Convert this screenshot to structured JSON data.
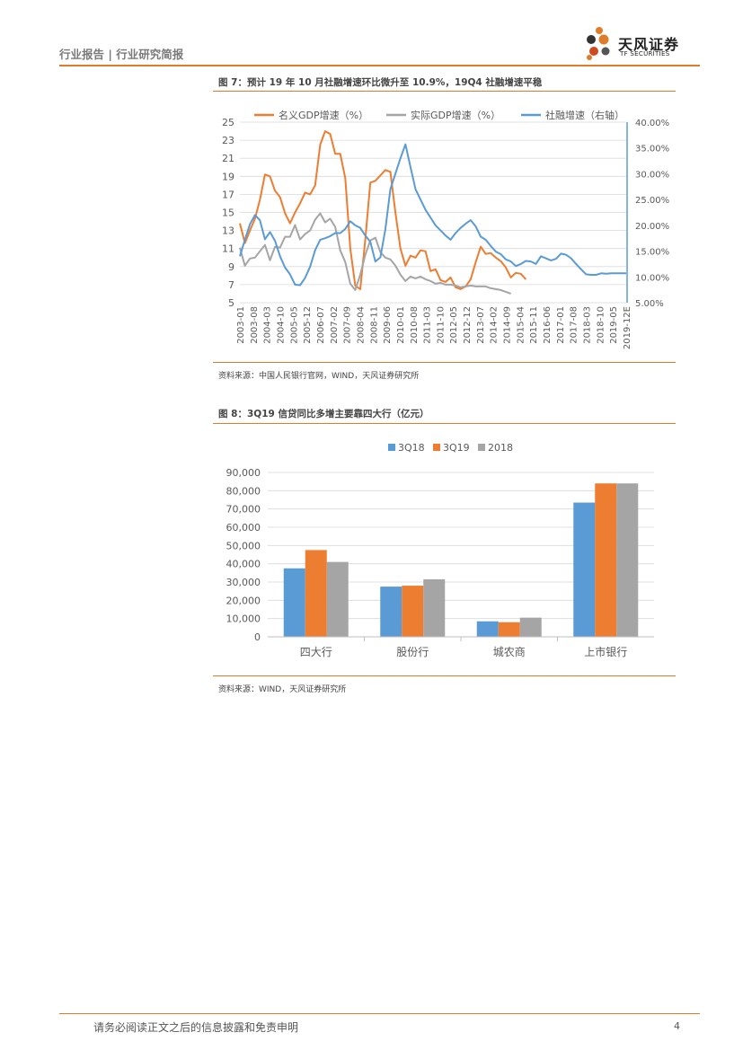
{
  "header": {
    "report_type": "行业报告 | 行业研究简报",
    "logo_cn": "天风证券",
    "logo_en": "TF SECURITIES"
  },
  "colors": {
    "accent": "#e07b2a",
    "orange": "#ed7d31",
    "blue": "#5b9bd5",
    "gray": "#a5a5a5"
  },
  "figure7": {
    "title": "图 7：预计 19 年 10 月社融增速环比微升至 10.9%，19Q4 社融增速平稳",
    "source": "资料来源：中国人民银行官网，WIND，天风证券研究所"
  },
  "figure8": {
    "title": "图 8：3Q19 信贷同比多增主要靠四大行（亿元）",
    "source": "资料来源：WIND，天风证券研究所"
  },
  "footer": {
    "disclaimer": "请务必阅读正文之后的信息披露和免责申明",
    "page": "4"
  },
  "chart_data": [
    {
      "type": "line",
      "title": "",
      "x_ticks": [
        "2003-01",
        "2003-08",
        "2004-03",
        "2004-10",
        "2005-05",
        "2005-12",
        "2006-07",
        "2007-02",
        "2007-09",
        "2008-04",
        "2008-11",
        "2009-06",
        "2010-01",
        "2010-08",
        "2011-03",
        "2011-10",
        "2012-05",
        "2012-12",
        "2013-07",
        "2014-02",
        "2014-09",
        "2015-04",
        "2015-11",
        "2016-06",
        "2017-01",
        "2017-08",
        "2018-03",
        "2018-10",
        "2019-05",
        "2019-12E"
      ],
      "ylim_left": [
        5,
        25
      ],
      "yticks_left": [
        "25",
        "23",
        "21",
        "19",
        "17",
        "15",
        "13",
        "11",
        "9",
        "7",
        "5"
      ],
      "ylim_right": [
        5,
        40
      ],
      "yticks_right": [
        "40.00%",
        "35.00%",
        "30.00%",
        "25.00%",
        "20.00%",
        "15.00%",
        "10.00%",
        "5.00%"
      ],
      "grid": true,
      "legend_position": "top",
      "series": [
        {
          "name": "名义GDP增速（%）",
          "axis": "left",
          "color": "#ed7d31",
          "points": [
            [
              0,
              13.8
            ],
            [
              1,
              11.6
            ],
            [
              2,
              13.0
            ],
            [
              3,
              14.3
            ],
            [
              4,
              16.4
            ],
            [
              5,
              19.2
            ],
            [
              6,
              19.0
            ],
            [
              7,
              17.4
            ],
            [
              8,
              16.7
            ],
            [
              9,
              14.9
            ],
            [
              10,
              13.8
            ],
            [
              11,
              15.0
            ],
            [
              12,
              16.0
            ],
            [
              13,
              17.2
            ],
            [
              14,
              17.0
            ],
            [
              15,
              18.0
            ],
            [
              16,
              22.5
            ],
            [
              17,
              24.0
            ],
            [
              18,
              23.7
            ],
            [
              19,
              21.5
            ],
            [
              20,
              21.5
            ],
            [
              21,
              18.8
            ],
            [
              22,
              11.0
            ],
            [
              23,
              6.9
            ],
            [
              24,
              6.5
            ],
            [
              25,
              12.0
            ],
            [
              26,
              18.3
            ],
            [
              27,
              18.5
            ],
            [
              28,
              19.1
            ],
            [
              29,
              19.7
            ],
            [
              30,
              19.5
            ],
            [
              31,
              15.0
            ],
            [
              32,
              11.0
            ],
            [
              33,
              9.1
            ],
            [
              34,
              10.2
            ],
            [
              35,
              10.0
            ],
            [
              36,
              10.8
            ],
            [
              37,
              10.7
            ],
            [
              38,
              8.5
            ],
            [
              39,
              8.7
            ],
            [
              40,
              7.5
            ],
            [
              41,
              7.3
            ],
            [
              42,
              7.8
            ],
            [
              43,
              6.7
            ],
            [
              44,
              6.5
            ],
            [
              45,
              6.8
            ],
            [
              46,
              7.6
            ],
            [
              47,
              9.5
            ],
            [
              48,
              11.2
            ],
            [
              49,
              10.4
            ],
            [
              50,
              10.5
            ],
            [
              51,
              10.0
            ],
            [
              52,
              9.6
            ],
            [
              53,
              8.9
            ],
            [
              54,
              7.8
            ],
            [
              55,
              8.3
            ],
            [
              56,
              8.2
            ],
            [
              57,
              7.6
            ]
          ]
        },
        {
          "name": "实际GDP增速（%）",
          "axis": "left",
          "color": "#a5a5a5",
          "points": [
            [
              0,
              11.1
            ],
            [
              1,
              9.1
            ],
            [
              2,
              9.9
            ],
            [
              3,
              10.0
            ],
            [
              4,
              10.7
            ],
            [
              5,
              11.4
            ],
            [
              6,
              9.7
            ],
            [
              7,
              11.2
            ],
            [
              8,
              11.1
            ],
            [
              9,
              12.3
            ],
            [
              10,
              12.3
            ],
            [
              11,
              13.6
            ],
            [
              12,
              12.0
            ],
            [
              13,
              12.6
            ],
            [
              14,
              13.0
            ],
            [
              15,
              14.2
            ],
            [
              16,
              14.9
            ],
            [
              17,
              13.9
            ],
            [
              18,
              14.3
            ],
            [
              19,
              13.4
            ],
            [
              20,
              10.8
            ],
            [
              21,
              9.5
            ],
            [
              22,
              7.1
            ],
            [
              23,
              6.4
            ],
            [
              24,
              8.1
            ],
            [
              25,
              10.3
            ],
            [
              26,
              11.9
            ],
            [
              27,
              12.2
            ],
            [
              28,
              10.6
            ],
            [
              29,
              10.0
            ],
            [
              30,
              9.8
            ],
            [
              31,
              9.1
            ],
            [
              32,
              8.1
            ],
            [
              33,
              7.4
            ],
            [
              34,
              7.9
            ],
            [
              35,
              7.7
            ],
            [
              36,
              7.9
            ],
            [
              37,
              7.6
            ],
            [
              38,
              7.4
            ],
            [
              39,
              7.1
            ],
            [
              40,
              7.2
            ],
            [
              41,
              7.0
            ],
            [
              42,
              7.0
            ],
            [
              43,
              6.9
            ],
            [
              44,
              6.7
            ],
            [
              45,
              6.8
            ],
            [
              46,
              6.9
            ],
            [
              47,
              6.8
            ],
            [
              48,
              6.8
            ],
            [
              49,
              6.8
            ],
            [
              50,
              6.6
            ],
            [
              51,
              6.5
            ],
            [
              52,
              6.4
            ],
            [
              53,
              6.2
            ],
            [
              54,
              6.0
            ]
          ]
        },
        {
          "name": "社融增速（右轴）",
          "axis": "right",
          "color": "#5b9bd5",
          "points": [
            [
              0,
              14.0
            ],
            [
              1,
              17.2
            ],
            [
              2,
              20.2
            ],
            [
              3,
              22.0
            ],
            [
              4,
              21.0
            ],
            [
              5,
              17.3
            ],
            [
              6,
              18.7
            ],
            [
              7,
              17.0
            ],
            [
              8,
              14.0
            ],
            [
              9,
              11.8
            ],
            [
              10,
              10.5
            ],
            [
              11,
              8.5
            ],
            [
              12,
              8.4
            ],
            [
              13,
              9.8
            ],
            [
              14,
              12.0
            ],
            [
              15,
              15.2
            ],
            [
              16,
              17.2
            ],
            [
              17,
              17.5
            ],
            [
              18,
              17.9
            ],
            [
              19,
              18.5
            ],
            [
              20,
              18.5
            ],
            [
              21,
              19.3
            ],
            [
              22,
              20.8
            ],
            [
              23,
              20.0
            ],
            [
              24,
              19.5
            ],
            [
              25,
              18.0
            ],
            [
              26,
              16.8
            ],
            [
              27,
              13.0
            ],
            [
              28,
              13.8
            ],
            [
              29,
              19.2
            ],
            [
              30,
              27.0
            ],
            [
              31,
              30.0
            ],
            [
              32,
              33.0
            ],
            [
              33,
              35.7
            ],
            [
              34,
              31.3
            ],
            [
              35,
              27.0
            ],
            [
              36,
              25.0
            ],
            [
              37,
              23.0
            ],
            [
              38,
              21.5
            ],
            [
              39,
              20.0
            ],
            [
              40,
              19.0
            ],
            [
              41,
              18.0
            ],
            [
              42,
              17.2
            ],
            [
              43,
              18.5
            ],
            [
              44,
              19.5
            ],
            [
              45,
              20.3
            ],
            [
              46,
              21.0
            ],
            [
              47,
              19.8
            ],
            [
              48,
              17.8
            ],
            [
              49,
              17.2
            ],
            [
              50,
              16.0
            ],
            [
              51,
              14.9
            ],
            [
              52,
              14.4
            ],
            [
              53,
              13.4
            ],
            [
              54,
              13.0
            ],
            [
              55,
              12.1
            ],
            [
              56,
              12.5
            ],
            [
              57,
              13.1
            ],
            [
              58,
              13.0
            ],
            [
              59,
              12.5
            ],
            [
              60,
              14.0
            ],
            [
              61,
              13.6
            ],
            [
              62,
              13.2
            ],
            [
              63,
              13.5
            ],
            [
              64,
              14.5
            ],
            [
              65,
              14.3
            ],
            [
              66,
              13.6
            ],
            [
              67,
              12.5
            ],
            [
              68,
              11.5
            ],
            [
              69,
              10.5
            ],
            [
              70,
              10.4
            ],
            [
              71,
              10.4
            ],
            [
              72,
              10.7
            ],
            [
              73,
              10.6
            ],
            [
              74,
              10.7
            ],
            [
              75,
              10.7
            ],
            [
              76,
              10.7
            ],
            [
              77,
              10.7
            ]
          ]
        }
      ]
    },
    {
      "type": "bar",
      "title": "",
      "categories": [
        "四大行",
        "股份行",
        "城农商",
        "上市银行"
      ],
      "ylim": [
        0,
        90000
      ],
      "yticks": [
        "90,000",
        "80,000",
        "70,000",
        "60,000",
        "50,000",
        "40,000",
        "30,000",
        "20,000",
        "10,000",
        "0"
      ],
      "legend_position": "top",
      "series": [
        {
          "name": "3Q18",
          "color": "#5b9bd5",
          "values": [
            37500,
            27500,
            8500,
            73500
          ]
        },
        {
          "name": "3Q19",
          "color": "#ed7d31",
          "values": [
            47500,
            28000,
            8000,
            84000
          ]
        },
        {
          "name": "2018",
          "color": "#a5a5a5",
          "values": [
            41000,
            31500,
            10500,
            84000
          ]
        }
      ]
    }
  ]
}
